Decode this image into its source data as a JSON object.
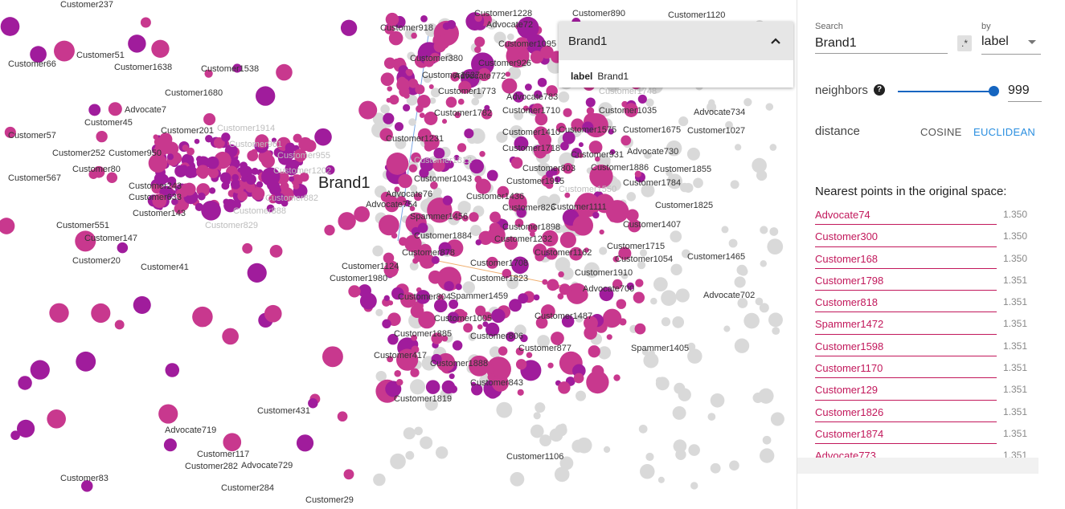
{
  "colors": {
    "magenta": "#c8388e",
    "purple": "#a01c9c",
    "gray": "#d9d9d9",
    "pink_text": "#c2185b",
    "blue": "#1565c0",
    "accent": "#2b8fe0"
  },
  "projection": {
    "focus_label": "Brand1",
    "labeled_points": [
      {
        "label": "Customer237"
      },
      {
        "label": "Customer1228"
      },
      {
        "label": "Customer890"
      },
      {
        "label": "Customer1120"
      },
      {
        "label": "Customer918"
      },
      {
        "label": "Advocate72"
      },
      {
        "label": "Customer1095"
      },
      {
        "label": "Customer66"
      },
      {
        "label": "Customer51"
      },
      {
        "label": "Customer1638"
      },
      {
        "label": "Customer1538"
      },
      {
        "label": "Customer380"
      },
      {
        "label": "Customer926"
      },
      {
        "label": "Customer1627"
      },
      {
        "label": "Advocate772"
      },
      {
        "label": "Customer1773"
      },
      {
        "label": "Customer1748"
      },
      {
        "label": "Advocate783"
      },
      {
        "label": "Customer1680"
      },
      {
        "label": "Advocate7"
      },
      {
        "label": "Customer1035"
      },
      {
        "label": "Advocate734"
      },
      {
        "label": "Customer45"
      },
      {
        "label": "Customer1782"
      },
      {
        "label": "Customer1710"
      },
      {
        "label": "Customer1914"
      },
      {
        "label": "Customer201"
      },
      {
        "label": "Customer1575"
      },
      {
        "label": "Customer1675"
      },
      {
        "label": "Customer1027"
      },
      {
        "label": "Customer57"
      },
      {
        "label": "Customer1410"
      },
      {
        "label": "Customer961"
      },
      {
        "label": "Customer1231"
      },
      {
        "label": "Customer1718"
      },
      {
        "label": "Advocate730"
      },
      {
        "label": "Customer252"
      },
      {
        "label": "Customer950"
      },
      {
        "label": "Customer955"
      },
      {
        "label": "Customer931"
      },
      {
        "label": "Customer1812"
      },
      {
        "label": "Customer80"
      },
      {
        "label": "Customer1202"
      },
      {
        "label": "Customer1886"
      },
      {
        "label": "Customer1855"
      },
      {
        "label": "Customer803"
      },
      {
        "label": "Customer567"
      },
      {
        "label": "Customer1043"
      },
      {
        "label": "Customer1915"
      },
      {
        "label": "Customer1784"
      },
      {
        "label": "Customer243"
      },
      {
        "label": "Customer1550"
      },
      {
        "label": "Advocate76"
      },
      {
        "label": "Customer633"
      },
      {
        "label": "Customer882"
      },
      {
        "label": "Customer1436"
      },
      {
        "label": "Advocate754"
      },
      {
        "label": "Customer826"
      },
      {
        "label": "Customer1111"
      },
      {
        "label": "Customer1825"
      },
      {
        "label": "Customer143"
      },
      {
        "label": "Customer888"
      },
      {
        "label": "Spammer1456"
      },
      {
        "label": "Customer829"
      },
      {
        "label": "Customer551"
      },
      {
        "label": "Customer1898"
      },
      {
        "label": "Customer1407"
      },
      {
        "label": "Customer1884"
      },
      {
        "label": "Customer147"
      },
      {
        "label": "Customer1232"
      },
      {
        "label": "Customer1715"
      },
      {
        "label": "Customer878"
      },
      {
        "label": "Customer1162"
      },
      {
        "label": "Customer1054"
      },
      {
        "label": "Customer1465"
      },
      {
        "label": "Customer20"
      },
      {
        "label": "Customer1708"
      },
      {
        "label": "Customer41"
      },
      {
        "label": "Customer1124"
      },
      {
        "label": "Customer1910"
      },
      {
        "label": "Customer1980"
      },
      {
        "label": "Customer1823"
      },
      {
        "label": "Advocate700"
      },
      {
        "label": "Advocate702"
      },
      {
        "label": "Customer804"
      },
      {
        "label": "Spammer1459"
      },
      {
        "label": "Customer1487"
      },
      {
        "label": "Customer1005"
      },
      {
        "label": "Customer1885"
      },
      {
        "label": "Customer806"
      },
      {
        "label": "Spammer1405"
      },
      {
        "label": "Customer877"
      },
      {
        "label": "Customer417"
      },
      {
        "label": "Customer1888"
      },
      {
        "label": "Customer843"
      },
      {
        "label": "Customer1819"
      },
      {
        "label": "Customer431"
      },
      {
        "label": "Advocate719"
      },
      {
        "label": "Customer117"
      },
      {
        "label": "Customer282"
      },
      {
        "label": "Advocate729"
      },
      {
        "label": "Customer1106"
      },
      {
        "label": "Customer83"
      },
      {
        "label": "Customer284"
      },
      {
        "label": "Customer29"
      }
    ]
  },
  "selection_card": {
    "title": "Brand1",
    "field_name": "label",
    "field_value": "Brand1"
  },
  "panel": {
    "search_label": "Search",
    "search_value": "Brand1",
    "regex_label": ".*",
    "by_label": "by",
    "by_value": "label",
    "neighbors_label": "neighbors",
    "help_glyph": "?",
    "neighbors_value": "999",
    "neighbors_fraction": 1.0,
    "distance_label": "distance",
    "cosine_label": "COSINE",
    "euclidean_label": "EUCLIDEAN",
    "nearest_title": "Nearest points in the original space:",
    "nearest": [
      {
        "name": "Advocate74",
        "distance": "1.350"
      },
      {
        "name": "Customer300",
        "distance": "1.350"
      },
      {
        "name": "Customer168",
        "distance": "1.350"
      },
      {
        "name": "Customer1798",
        "distance": "1.351"
      },
      {
        "name": "Customer818",
        "distance": "1.351"
      },
      {
        "name": "Spammer1472",
        "distance": "1.351"
      },
      {
        "name": "Customer1598",
        "distance": "1.351"
      },
      {
        "name": "Customer1170",
        "distance": "1.351"
      },
      {
        "name": "Customer129",
        "distance": "1.351"
      },
      {
        "name": "Customer1826",
        "distance": "1.351"
      },
      {
        "name": "Customer1874",
        "distance": "1.351"
      },
      {
        "name": "Advocate773",
        "distance": "1.351"
      }
    ]
  }
}
